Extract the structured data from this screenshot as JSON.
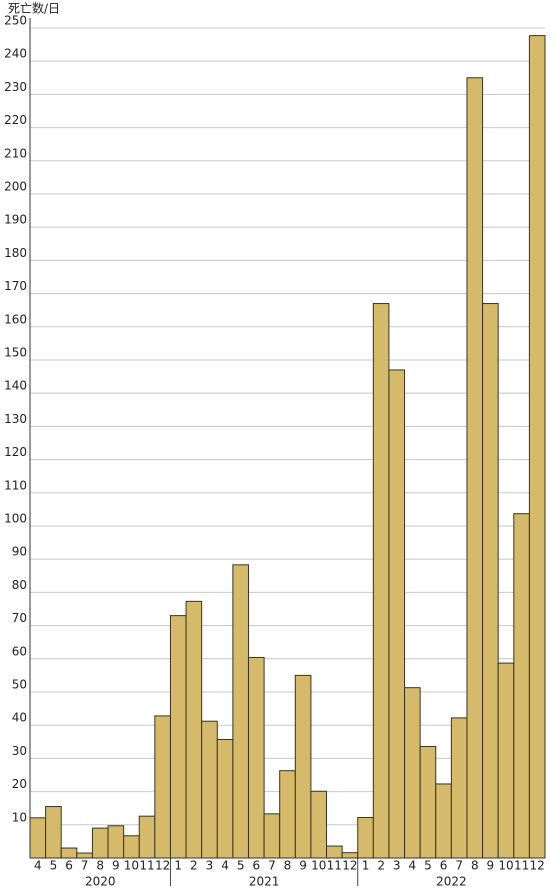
{
  "chart_data": {
    "type": "bar",
    "y_label": "死亡数/日",
    "color": "#d6ba6b",
    "grid": true,
    "ylim": [
      0,
      253
    ],
    "yticks": [
      10,
      20,
      30,
      40,
      50,
      60,
      70,
      80,
      90,
      100,
      110,
      120,
      130,
      140,
      150,
      160,
      170,
      180,
      190,
      200,
      210,
      220,
      230,
      240,
      250
    ],
    "groups": [
      {
        "name": "2020",
        "categories": [
          "4",
          "5",
          "6",
          "7",
          "8",
          "9",
          "10",
          "11",
          "12"
        ],
        "values": [
          12.1,
          15.5,
          3,
          1.5,
          9,
          9.7,
          6.7,
          12.6,
          42.8
        ]
      },
      {
        "name": "2021",
        "categories": [
          "1",
          "2",
          "3",
          "4",
          "5",
          "6",
          "7",
          "8",
          "9",
          "10",
          "11",
          "12"
        ],
        "values": [
          73,
          77.3,
          41.2,
          35.7,
          88.3,
          60.4,
          13.3,
          26.3,
          55,
          20.1,
          3.6,
          1.6
        ]
      },
      {
        "name": "2022",
        "categories": [
          "1",
          "2",
          "3",
          "4",
          "5",
          "6",
          "7",
          "8",
          "9",
          "10",
          "11",
          "12"
        ],
        "values": [
          12.2,
          167,
          147,
          51.3,
          33.6,
          22.3,
          42.2,
          235,
          167,
          58.7,
          103.7,
          247.7
        ]
      }
    ]
  }
}
